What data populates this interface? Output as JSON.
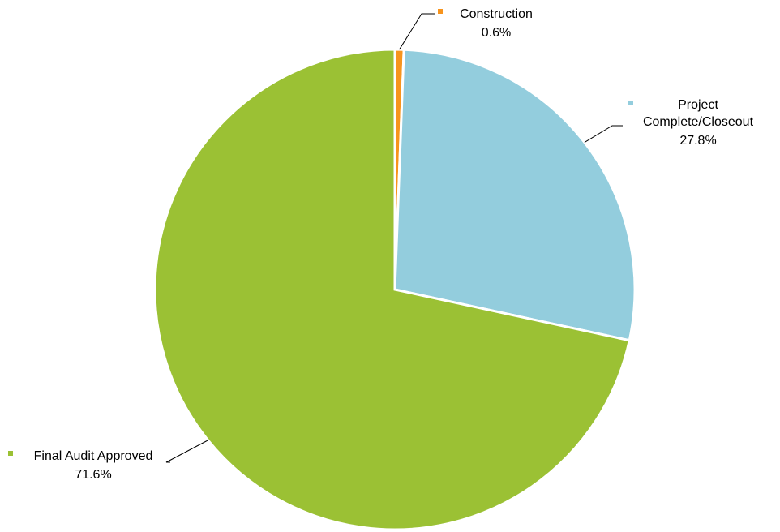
{
  "chart_data": {
    "type": "pie",
    "title": "",
    "slices": [
      {
        "label": "Construction",
        "value": 0.6,
        "display": "0.6%",
        "color": "#F7941D"
      },
      {
        "label": "Project Complete/Closeout",
        "label_lines": [
          "Project",
          "Complete/Closeout"
        ],
        "value": 27.8,
        "display": "27.8%",
        "color": "#93CDDD"
      },
      {
        "label": "Final Audit Approved",
        "value": 71.6,
        "display": "71.6%",
        "color": "#9BC134"
      }
    ],
    "start_angle": "top (12 o'clock)",
    "direction": "clockwise",
    "legend": "none (data labels with category name and percentage)"
  }
}
